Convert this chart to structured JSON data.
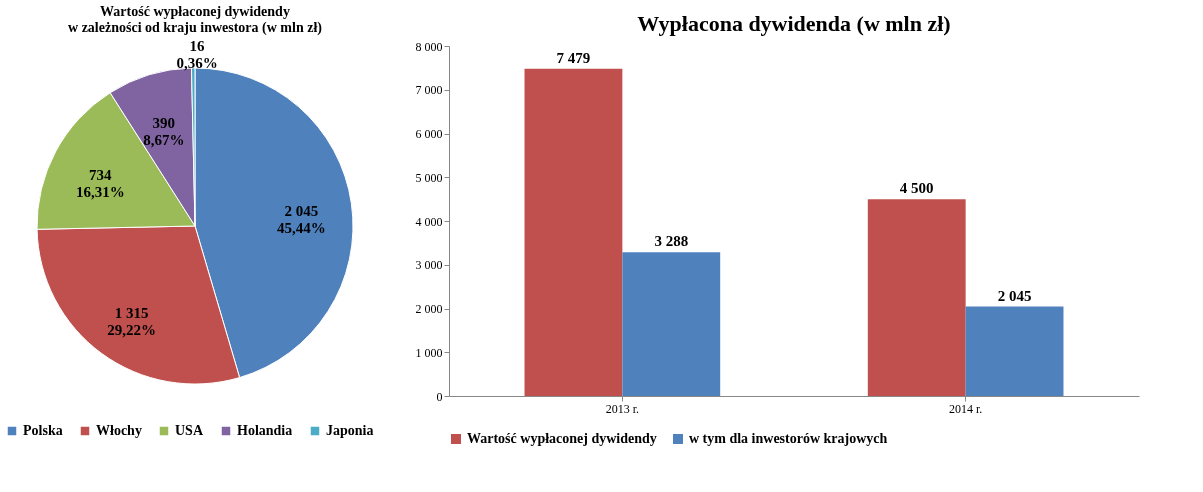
{
  "chart_data": [
    {
      "type": "pie",
      "title": "Wartość wypłaconej dywidendy\nw zależności od kraju inwestora (w mln zł)",
      "categories": [
        "Polska",
        "Włochy",
        "USA",
        "Holandia",
        "Japonia"
      ],
      "values": [
        2045,
        1315,
        734,
        390,
        16
      ],
      "colors": [
        "#4f81bd",
        "#c0504d",
        "#9bbb59",
        "#8064a2",
        "#4bacc6"
      ],
      "value_labels": [
        "2 045\n45,44%",
        "1 315\n29,22%",
        "734\n16,31%",
        "390\n8,67%",
        "16\n0,36%"
      ],
      "legend": "bottom"
    },
    {
      "type": "bar",
      "title": "Wypłacona dywidenda (w mln zł)",
      "categories": [
        "2013 r.",
        "2014 r."
      ],
      "series": [
        {
          "name": "Wartość wypłaconej dywidendy",
          "color": "#c0504d",
          "values": [
            7479,
            4500
          ],
          "value_labels": [
            "7 479",
            "4 500"
          ]
        },
        {
          "name": "w tym dla inwestorów krajowych",
          "color": "#4f81bd",
          "values": [
            3288,
            2045
          ],
          "value_labels": [
            "3 288",
            "2 045"
          ]
        }
      ],
      "ylim": [
        0,
        8000
      ],
      "yticks": [
        0,
        {
          "value": 1000,
          "label": "1 000"
        },
        {
          "value": 2000,
          "label": "2 000"
        },
        {
          "value": 3000,
          "label": "3 000"
        },
        {
          "value": 4000,
          "label": "4 000"
        },
        {
          "value": 5000,
          "label": "5 000"
        },
        {
          "value": 6000,
          "label": "6 000"
        },
        {
          "value": 7000,
          "label": "7 000"
        },
        {
          "value": 8000,
          "label": "8 000"
        }
      ],
      "grid": false,
      "legend": "bottom"
    }
  ]
}
